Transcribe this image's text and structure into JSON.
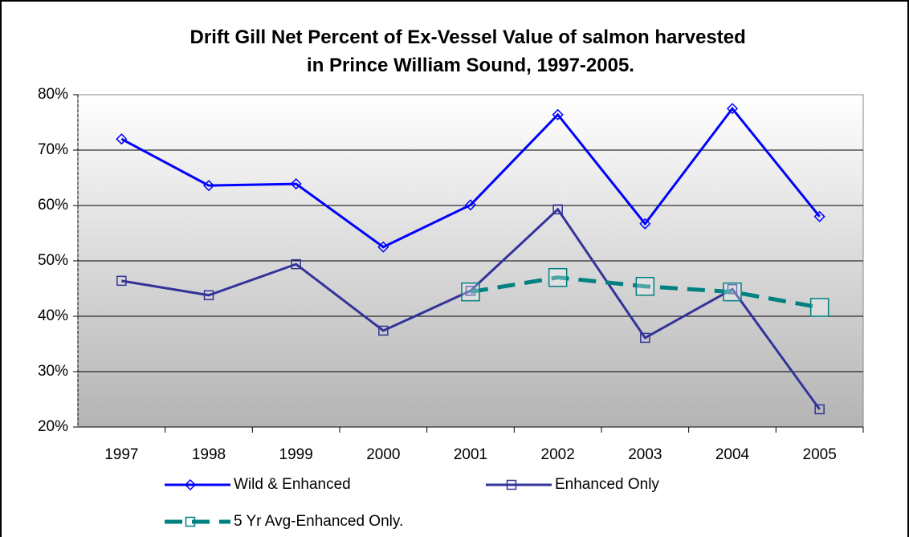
{
  "chart_data": {
    "type": "line",
    "title": [
      "Drift Gill Net Percent of Ex-Vessel Value of salmon harvested",
      "in Prince William Sound, 1997-2005."
    ],
    "categories": [
      "1997",
      "1998",
      "1999",
      "2000",
      "2001",
      "2002",
      "2003",
      "2004",
      "2005"
    ],
    "series": [
      {
        "name": "Wild & Enhanced",
        "color": "#0000ff",
        "marker": "diamond",
        "dashed": false,
        "values": [
          72.0,
          63.6,
          63.9,
          52.5,
          60.1,
          76.4,
          56.7,
          77.5,
          58.0
        ]
      },
      {
        "name": "Enhanced Only",
        "color": "#333399",
        "marker": "square",
        "dashed": false,
        "values": [
          46.4,
          43.8,
          49.4,
          37.4,
          44.6,
          59.3,
          36.1,
          44.9,
          23.2
        ]
      },
      {
        "name": "5 Yr Avg-Enhanced Only.",
        "color": "#008080",
        "marker": "bigsquare",
        "dashed": true,
        "values": [
          null,
          null,
          null,
          null,
          44.4,
          47.0,
          45.4,
          44.4,
          41.6
        ]
      }
    ],
    "ylim": [
      20,
      80
    ],
    "yticks": [
      {
        "value": 20,
        "label": "20%"
      },
      {
        "value": 30,
        "label": "30%"
      },
      {
        "value": 40,
        "label": "40%"
      },
      {
        "value": 50,
        "label": "50%"
      },
      {
        "value": 60,
        "label": "60%"
      },
      {
        "value": 70,
        "label": "70%"
      },
      {
        "value": 80,
        "label": "80%"
      }
    ],
    "grid": true
  }
}
